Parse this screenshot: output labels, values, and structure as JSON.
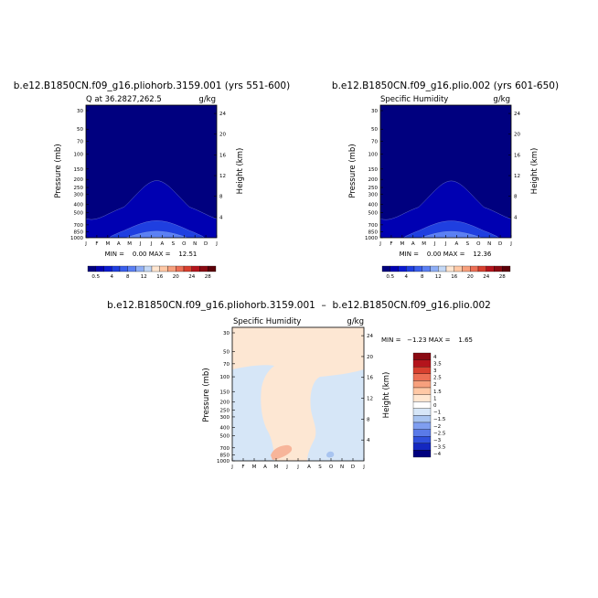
{
  "chart_data": [
    {
      "type": "contour",
      "title": "b.e12.B1850CN.f09_g16.pliohorb.3159.001 (yrs 551-600)",
      "subtitle_left": "Q at 36.2827,262.5",
      "subtitle_right": "g/kg",
      "ylabel": "Pressure (mb)",
      "ylabel_right": "Height (km)",
      "x_ticks": [
        "J",
        "F",
        "M",
        "A",
        "M",
        "J",
        "J",
        "A",
        "S",
        "O",
        "N",
        "D",
        "J"
      ],
      "y_ticks": [
        "30",
        "50",
        "70",
        "100",
        "150",
        "200",
        "250",
        "300",
        "400",
        "500",
        "700",
        "850",
        "1000"
      ],
      "y_ticks_right": [
        "24",
        "20",
        "16",
        "12",
        "8",
        "4"
      ],
      "min_max": "MIN =    0.00 MAX =    12.51",
      "colorbar_labels": [
        "0.5",
        "4",
        "8",
        "12",
        "16",
        "20",
        "24",
        "28"
      ],
      "colors": [
        "#00007f",
        "#0000b2",
        "#0a1ad0",
        "#1f3fe0",
        "#3a5fec",
        "#5b80f3",
        "#8eaef5",
        "#c4d8f5",
        "#ffe6d0",
        "#ffc8a5",
        "#f7a07d",
        "#ec6f55",
        "#d8402f",
        "#b4141c",
        "#8a0a12",
        "#5c0008"
      ],
      "field": {
        "base": 5.0,
        "peak": 12.51,
        "peak_month": 6.5
      }
    },
    {
      "type": "contour",
      "title": "b.e12.B1850CN.f09_g16.plio.002 (yrs 601-650)",
      "subtitle_left": "Specific Humidity",
      "subtitle_right": "g/kg",
      "ylabel": "Pressure (mb)",
      "ylabel_right": "Height (km)",
      "x_ticks": [
        "J",
        "F",
        "M",
        "A",
        "M",
        "J",
        "J",
        "A",
        "S",
        "O",
        "N",
        "D",
        "J"
      ],
      "y_ticks": [
        "30",
        "50",
        "70",
        "100",
        "150",
        "200",
        "250",
        "300",
        "400",
        "500",
        "700",
        "850",
        "1000"
      ],
      "y_ticks_right": [
        "24",
        "20",
        "16",
        "12",
        "8",
        "4"
      ],
      "min_max": "MIN =    0.00 MAX =    12.36",
      "colorbar_labels": [
        "0.5",
        "4",
        "8",
        "12",
        "16",
        "20",
        "24",
        "28"
      ],
      "field": {
        "base": 5.0,
        "peak": 12.36,
        "peak_month": 6.5
      }
    },
    {
      "type": "contour",
      "title": "b.e12.B1850CN.f09_g16.pliohorb.3159.001  –  b.e12.B1850CN.f09_g16.plio.002",
      "subtitle_left": "Specific Humidity",
      "subtitle_right": "g/kg",
      "ylabel": "Pressure (mb)",
      "ylabel_right": "Height (km)",
      "x_ticks": [
        "J",
        "F",
        "M",
        "A",
        "M",
        "J",
        "J",
        "A",
        "S",
        "O",
        "N",
        "D",
        "J"
      ],
      "y_ticks": [
        "30",
        "50",
        "70",
        "100",
        "150",
        "200",
        "250",
        "300",
        "400",
        "500",
        "700",
        "850",
        "1000"
      ],
      "y_ticks_right": [
        "24",
        "20",
        "16",
        "12",
        "8",
        "4"
      ],
      "min_max": "MIN =   −1.23 MAX =    1.65",
      "colorbar_labels": [
        "4",
        "3.5",
        "3",
        "2.5",
        "2",
        "1.5",
        "1",
        "0",
        "−1",
        "−1.5",
        "−2",
        "−2.5",
        "−3",
        "−3.5",
        "−4"
      ],
      "colors": [
        "#8a0a12",
        "#b4141c",
        "#d8402f",
        "#ec6f55",
        "#f7a07d",
        "#ffc8a5",
        "#ffe6d0",
        "#ffffff",
        "#d6e6f7",
        "#a8c4f0",
        "#7f9ef0",
        "#5a7ae8",
        "#3050dc",
        "#1428c0",
        "#00007f"
      ],
      "fill_colors": {
        "positive": "#fde7d3",
        "negative": "#d6e6f7",
        "strong_positive": "#f7b59a",
        "strong_negative": "#a8c4f0"
      }
    }
  ]
}
